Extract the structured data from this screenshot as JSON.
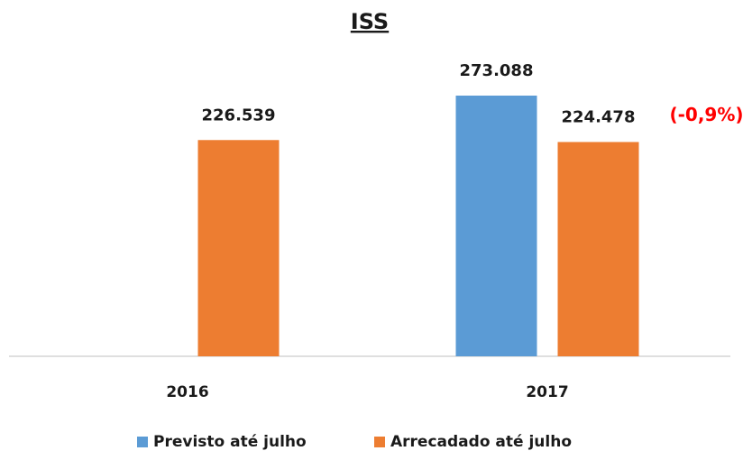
{
  "chart_data": {
    "type": "bar",
    "title": "ISS",
    "categories": [
      "2016",
      "2017"
    ],
    "series": [
      {
        "name": "Previsto até julho",
        "color": "#5b9bd5",
        "values": [
          null,
          273088
        ],
        "value_labels": [
          null,
          "273.088"
        ]
      },
      {
        "name": "Arrecadado até julho",
        "color": "#ed7d31",
        "values": [
          226539,
          224478
        ],
        "value_labels": [
          "226.539",
          "224.478"
        ]
      }
    ],
    "annotation": "(-0,9%)",
    "annotation_color": "#ff0000"
  }
}
